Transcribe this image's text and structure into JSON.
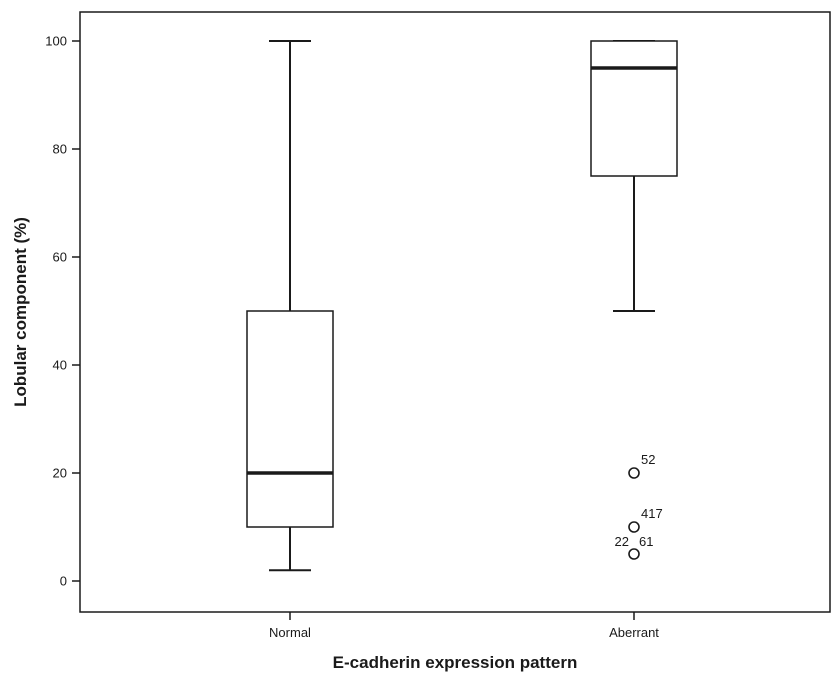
{
  "chart_data": {
    "type": "box",
    "title": "",
    "xlabel": "E-cadherin expression pattern",
    "ylabel": "Lobular component (%)",
    "ylim": [
      -5,
      106
    ],
    "yticks": [
      0,
      20,
      40,
      60,
      80,
      100
    ],
    "categories": [
      "Normal",
      "Aberrant"
    ],
    "boxes": [
      {
        "category": "Normal",
        "whisker_low": 2,
        "q1": 10,
        "median": 20,
        "q3": 50,
        "whisker_high": 100,
        "outliers": []
      },
      {
        "category": "Aberrant",
        "whisker_low": 50,
        "q1": 75,
        "median": 95,
        "q3": 100,
        "whisker_high": 100,
        "outliers": [
          {
            "value": 20,
            "label": "52"
          },
          {
            "value": 10,
            "label": "417"
          },
          {
            "value": 5,
            "label": "22 61"
          }
        ]
      }
    ],
    "colors": {
      "box_stroke": "#1a1a1a",
      "background": "#ffffff"
    }
  }
}
